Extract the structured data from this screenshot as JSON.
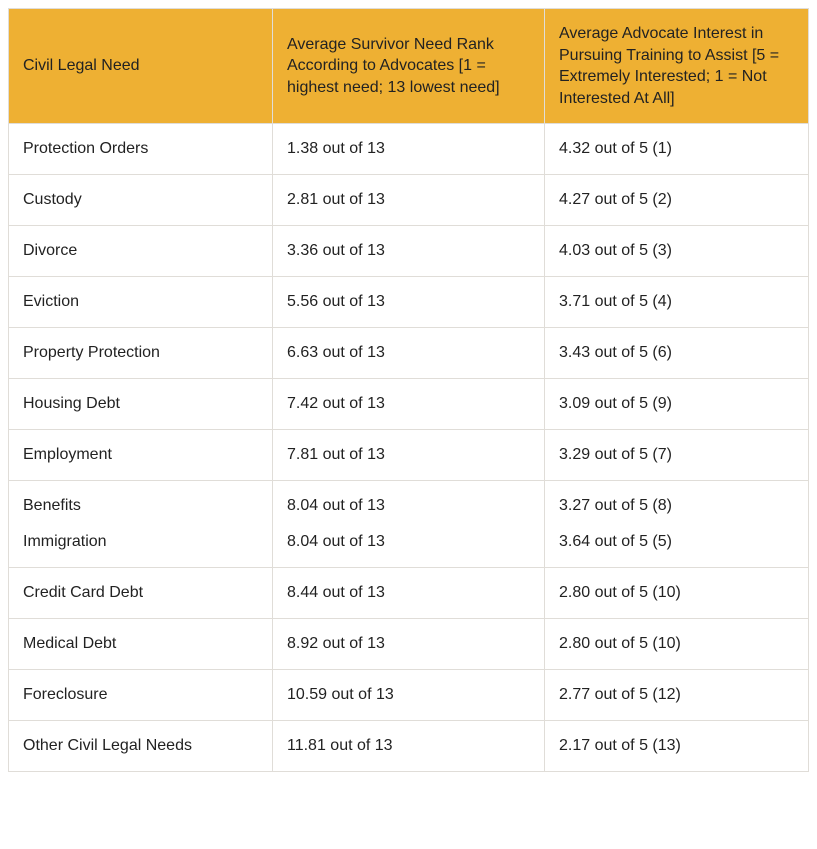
{
  "table": {
    "header_bg": "#eeb033",
    "border_color": "#e0ddd8",
    "text_color": "#222222",
    "font_size_pt": 12,
    "columns": [
      {
        "label": "Civil Legal Need"
      },
      {
        "label": "Average Survivor Need Rank According to Advocates [1 = highest need; 13 lowest need]"
      },
      {
        "label": "Average Advocate Interest in Pursuing Training to Assist [5 = Extremely Interested; 1 = Not Interested At All]"
      }
    ],
    "rows": [
      {
        "need": "Protection Orders",
        "rank": "1.38 out of 13",
        "interest": "4.32 out of 5 (1)"
      },
      {
        "need": "Custody",
        "rank": "2.81 out of 13",
        "interest": "4.27 out of 5 (2)"
      },
      {
        "need": "Divorce",
        "rank": "3.36 out of 13",
        "interest": "4.03 out of 5 (3)"
      },
      {
        "need": "Eviction",
        "rank": "5.56 out of 13",
        "interest": "3.71 out of 5 (4)"
      },
      {
        "need": "Property Protection",
        "rank": "6.63 out of 13",
        "interest": "3.43 out of 5 (6)"
      },
      {
        "need": "Housing Debt",
        "rank": "7.42 out of 13",
        "interest": "3.09 out of 5 (9)"
      },
      {
        "need": "Employment",
        "rank": "7.81 out of 13",
        "interest": "3.29 out of 5 (7)"
      },
      {
        "need": "Benefits",
        "rank": "8.04 out of 13",
        "interest": "3.27 out of 5 (8)",
        "need2": "Immigration",
        "rank2": "8.04 out of 13",
        "interest2": "3.64 out of 5 (5)"
      },
      {
        "need": "Credit Card Debt",
        "rank": "8.44 out of 13",
        "interest": "2.80 out of 5 (10)"
      },
      {
        "need": "Medical Debt",
        "rank": "8.92 out of 13",
        "interest": "2.80 out of 5 (10)"
      },
      {
        "need": "Foreclosure",
        "rank": "10.59 out of 13",
        "interest": "2.77 out of 5 (12)"
      },
      {
        "need": "Other Civil Legal Needs",
        "rank": "11.81 out of 13",
        "interest": "2.17 out of 5 (13)"
      }
    ]
  }
}
